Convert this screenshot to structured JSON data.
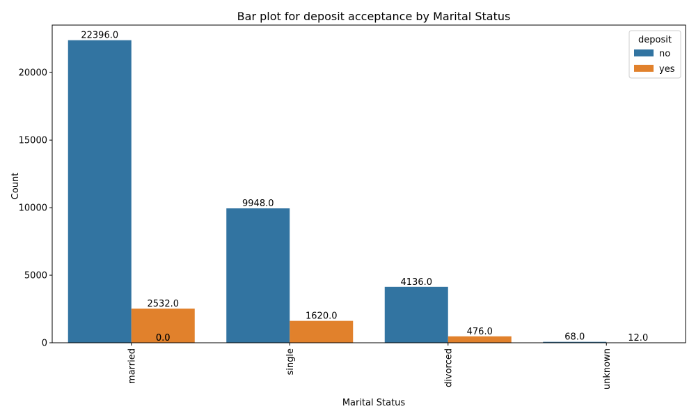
{
  "chart_data": {
    "type": "bar",
    "title": "Bar plot for deposit acceptance by Marital Status",
    "xlabel": "Marital Status",
    "ylabel": "Count",
    "categories": [
      "married",
      "single",
      "divorced",
      "unknown"
    ],
    "series": [
      {
        "name": "no",
        "color": "#3274a1",
        "values": [
          22396,
          9948,
          4136,
          68
        ]
      },
      {
        "name": "yes",
        "color": "#e1812c",
        "values": [
          2532,
          1620,
          476,
          12
        ]
      }
    ],
    "bar_labels": {
      "no": [
        "22396.0",
        "9948.0",
        "4136.0",
        "68.0"
      ],
      "yes": [
        "2532.0",
        "1620.0",
        "476.0",
        "12.0"
      ]
    },
    "extra_labels": [
      {
        "category": "married",
        "text": "0.0"
      },
      {
        "category": "married",
        "text": "0.0"
      }
    ],
    "yticks": [
      0,
      5000,
      10000,
      15000,
      20000
    ],
    "ytick_labels": [
      "0",
      "5000",
      "10000",
      "15000",
      "20000"
    ],
    "ylim": [
      0,
      23516
    ],
    "legend": {
      "title": "deposit",
      "entries": [
        "no",
        "yes"
      ],
      "placement": "top-right"
    },
    "grid": false,
    "xtick_rotation": "vertical"
  }
}
